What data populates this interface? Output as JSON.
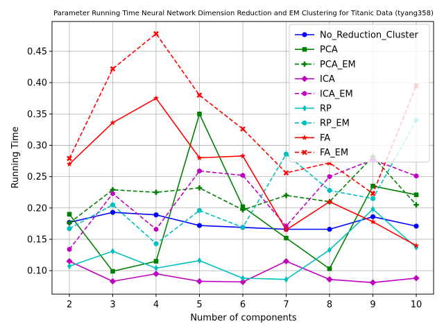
{
  "chart_data": {
    "type": "line",
    "title": "Parameter Running Time Neural Network Dimension Reduction and EM Clustering for Titanic Data (tyang358)",
    "xlabel": "Number of components",
    "ylabel": "Running Time",
    "x": [
      2,
      3,
      4,
      5,
      6,
      7,
      8,
      9,
      10
    ],
    "xlim": [
      1.6,
      10.4
    ],
    "ylim": [
      0.0625,
      0.4975
    ],
    "xticks": [
      2,
      3,
      4,
      5,
      6,
      7,
      8,
      9,
      10
    ],
    "yticks": [
      0.1,
      0.15,
      0.2,
      0.25,
      0.3,
      0.35,
      0.4,
      0.45
    ],
    "ytick_labels": [
      "0.10",
      "0.15",
      "0.20",
      "0.25",
      "0.30",
      "0.35",
      "0.40",
      "0.45"
    ],
    "grid": true,
    "legend_position": "top-right",
    "series": [
      {
        "name": "No_Reduction_Cluster",
        "color": "#0000ff",
        "dashed": false,
        "marker": "circle",
        "values": [
          0.177,
          0.193,
          0.189,
          0.172,
          0.169,
          0.166,
          0.166,
          0.186,
          0.171
        ]
      },
      {
        "name": "PCA",
        "color": "#008000",
        "dashed": false,
        "marker": "square",
        "values": [
          0.19,
          0.099,
          0.115,
          0.35,
          0.202,
          0.152,
          0.103,
          0.235,
          0.221
        ]
      },
      {
        "name": "PCA_EM",
        "color": "#008000",
        "dashed": true,
        "marker": "plus",
        "values": [
          0.176,
          0.229,
          0.225,
          0.232,
          0.197,
          0.22,
          0.21,
          0.282,
          0.205
        ]
      },
      {
        "name": "ICA",
        "color": "#bf00bf",
        "dashed": false,
        "marker": "diamond",
        "values": [
          0.115,
          0.083,
          0.095,
          0.083,
          0.082,
          0.115,
          0.086,
          0.081,
          0.088
        ]
      },
      {
        "name": "ICA_EM",
        "color": "#bf00bf",
        "dashed": true,
        "marker": "hexagon",
        "values": [
          0.134,
          0.223,
          0.166,
          0.259,
          0.252,
          0.171,
          0.25,
          0.277,
          0.251
        ]
      },
      {
        "name": "RP",
        "color": "#00bfbf",
        "dashed": false,
        "marker": "thin_diamond",
        "values": [
          0.107,
          0.131,
          0.104,
          0.116,
          0.088,
          0.086,
          0.133,
          0.198,
          0.137
        ]
      },
      {
        "name": "RP_EM",
        "color": "#00bfbf",
        "dashed": true,
        "marker": "octagon",
        "values": [
          0.167,
          0.205,
          0.143,
          0.196,
          0.169,
          0.286,
          0.228,
          0.215,
          0.34
        ]
      },
      {
        "name": "FA",
        "color": "#ff0000",
        "dashed": false,
        "marker": "star",
        "values": [
          0.27,
          0.336,
          0.375,
          0.28,
          0.283,
          0.165,
          0.21,
          0.178,
          0.14
        ]
      },
      {
        "name": "FA_EM",
        "color": "#ff0000",
        "dashed": true,
        "marker": "x",
        "values": [
          0.279,
          0.422,
          0.478,
          0.38,
          0.326,
          0.256,
          0.272,
          0.223,
          0.395
        ]
      }
    ]
  }
}
